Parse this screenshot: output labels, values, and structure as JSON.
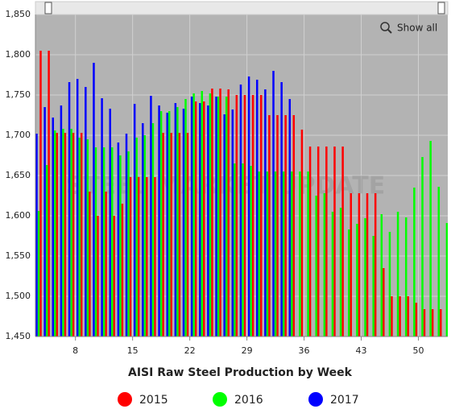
{
  "chart_data": {
    "type": "bar",
    "title": "AISI Raw Steel Production by Week",
    "watermark": "STEEL MARKET UPDATE",
    "buttons": [
      "Show all"
    ],
    "x": [
      3,
      4,
      5,
      6,
      7,
      8,
      9,
      10,
      11,
      12,
      13,
      14,
      15,
      16,
      17,
      18,
      19,
      20,
      21,
      22,
      23,
      24,
      25,
      26,
      27,
      28,
      29,
      30,
      31,
      32,
      33,
      34,
      35,
      36,
      37,
      38,
      39,
      40,
      41,
      42,
      43,
      44,
      45,
      46,
      47,
      48,
      49,
      50,
      51,
      52,
      53
    ],
    "xlim": [
      3.1,
      53.6
    ],
    "xticks": [
      8,
      15,
      22,
      29,
      36,
      43,
      50
    ],
    "ylim": [
      1450,
      1850
    ],
    "yticks": [
      {
        "value": 1450,
        "label": "1,450"
      },
      {
        "value": 1500,
        "label": "1,500"
      },
      {
        "value": 1550,
        "label": "1,550"
      },
      {
        "value": 1600,
        "label": "1,600"
      },
      {
        "value": 1650,
        "label": "1,650"
      },
      {
        "value": 1700,
        "label": "1,700"
      },
      {
        "value": 1750,
        "label": "1,750"
      },
      {
        "value": 1800,
        "label": "1,800"
      },
      {
        "value": 1850,
        "label": "1,850"
      }
    ],
    "grid": true,
    "legend": "bottom",
    "series": [
      {
        "name": "2015",
        "color": "#ff0000",
        "values": [
          1805,
          1805,
          1703,
          1703,
          1703,
          1703,
          1630,
          1600,
          1630,
          1600,
          1615,
          1648,
          1648,
          1648,
          1648,
          1703,
          1703,
          1703,
          1703,
          1742,
          1742,
          1758,
          1758,
          1757,
          1750,
          1750,
          1750,
          1750,
          1725,
          1725,
          1725,
          1725,
          1707,
          1686,
          1686,
          1686,
          1686,
          1686,
          1628,
          1628,
          1628,
          1628,
          1535,
          1500,
          1500,
          1500,
          1492,
          1484,
          1484,
          1484,
          1484
        ]
      },
      {
        "name": "2016",
        "color": "#00ff00",
        "values": [
          1606,
          1663,
          1706,
          1708,
          1708,
          1697,
          1695,
          1685,
          1685,
          1685,
          1675,
          1680,
          1697,
          1700,
          1715,
          1730,
          1730,
          1735,
          1745,
          1752,
          1755,
          1752,
          1748,
          1748,
          1665,
          1665,
          1662,
          1655,
          1655,
          1655,
          1655,
          1655,
          1655,
          1655,
          1625,
          1628,
          1605,
          1610,
          1583,
          1590,
          1597,
          1575,
          1602,
          1580,
          1605,
          1598,
          1635,
          1673,
          1693,
          1636,
          1591
        ]
      },
      {
        "name": "2017",
        "color": "#0000ff",
        "values": [
          1702,
          1735,
          1722,
          1737,
          1766,
          1770,
          1760,
          1790,
          1746,
          1733,
          1691,
          1702,
          1739,
          1715,
          1749,
          1737,
          1728,
          1740,
          1733,
          1748,
          1740,
          1737,
          1748,
          1726,
          1732,
          1763,
          1773,
          1769,
          1757,
          1780,
          1766,
          1745,
          null,
          null,
          null,
          null,
          null,
          null,
          null,
          null,
          null,
          null,
          null,
          null,
          null,
          null,
          null,
          null,
          null,
          null,
          null
        ]
      }
    ]
  }
}
